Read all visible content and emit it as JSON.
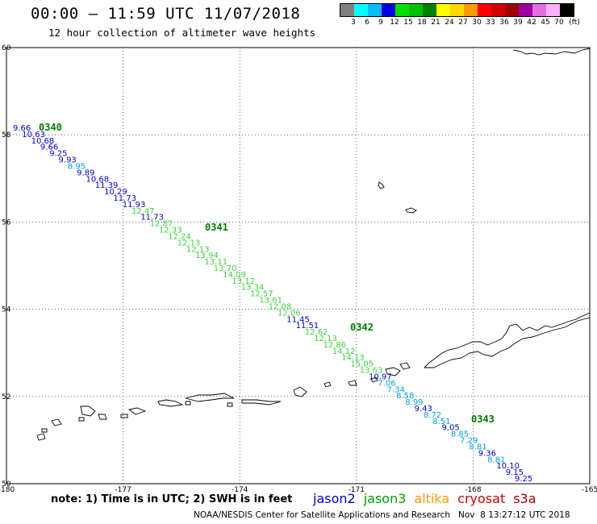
{
  "header": {
    "title": "00:00 – 11:59 UTC 11/07/2018",
    "subtitle": "12 hour collection of altimeter wave heights"
  },
  "color_scale": {
    "unit": "(ft)",
    "bins": [
      {
        "label": "3",
        "color": "#808080"
      },
      {
        "label": "6",
        "color": "#00ffff"
      },
      {
        "label": "9",
        "color": "#00bfff"
      },
      {
        "label": "12",
        "color": "#0000e0"
      },
      {
        "label": "15",
        "color": "#00e000"
      },
      {
        "label": "18",
        "color": "#00c000"
      },
      {
        "label": "21",
        "color": "#008000"
      },
      {
        "label": "24",
        "color": "#ffff00"
      },
      {
        "label": "27",
        "color": "#ffd700"
      },
      {
        "label": "30",
        "color": "#ff9900"
      },
      {
        "label": "33",
        "color": "#ff0000"
      },
      {
        "label": "36",
        "color": "#d00000"
      },
      {
        "label": "39",
        "color": "#a00000"
      },
      {
        "label": "42",
        "color": "#a000a0"
      },
      {
        "label": "45",
        "color": "#e070e0"
      },
      {
        "label": "70",
        "color": "#ffb0ff"
      },
      {
        "label": "",
        "color": "#000000"
      }
    ]
  },
  "axes": {
    "x_ticks": [
      "-180",
      "-177",
      "-174",
      "-171",
      "-168",
      "-165"
    ],
    "y_ticks": [
      "60",
      "58",
      "56",
      "54",
      "52",
      "50"
    ]
  },
  "track": {
    "time_labels": [
      "0340",
      "0341",
      "0342",
      "0343"
    ],
    "points": [
      {
        "v": "9.66",
        "c": "#0000c0"
      },
      {
        "v": "10.63",
        "c": "#0000c0"
      },
      {
        "v": "10.68",
        "c": "#0000c0"
      },
      {
        "v": "9.66",
        "c": "#0000c0"
      },
      {
        "v": "9.25",
        "c": "#0000c0"
      },
      {
        "v": "9.93",
        "c": "#0000c0"
      },
      {
        "v": "8.95",
        "c": "#00a0e0"
      },
      {
        "v": "9.89",
        "c": "#0000c0"
      },
      {
        "v": "10.68",
        "c": "#0000c0"
      },
      {
        "v": "11.39",
        "c": "#0000c0"
      },
      {
        "v": "10.29",
        "c": "#0000c0"
      },
      {
        "v": "11.73",
        "c": "#0000c0"
      },
      {
        "v": "11.93",
        "c": "#0000c0"
      },
      {
        "v": "12.47",
        "c": "#40d040"
      },
      {
        "v": "11.73",
        "c": "#0000c0"
      },
      {
        "v": "12.87",
        "c": "#40d040"
      },
      {
        "v": "12.33",
        "c": "#40d040"
      },
      {
        "v": "12.24",
        "c": "#40d040"
      },
      {
        "v": "12.13",
        "c": "#40d040"
      },
      {
        "v": "12.13",
        "c": "#40d040"
      },
      {
        "v": "13.94",
        "c": "#40d040"
      },
      {
        "v": "13.11",
        "c": "#40d040"
      },
      {
        "v": "13.70",
        "c": "#40d040"
      },
      {
        "v": "14.09",
        "c": "#40d040"
      },
      {
        "v": "13.12",
        "c": "#40d040"
      },
      {
        "v": "13.34",
        "c": "#40d040"
      },
      {
        "v": "12.57",
        "c": "#40d040"
      },
      {
        "v": "13.61",
        "c": "#40d040"
      },
      {
        "v": "12.08",
        "c": "#40d040"
      },
      {
        "v": "12.06",
        "c": "#40d040"
      },
      {
        "v": "11.45",
        "c": "#0000c0"
      },
      {
        "v": "11.51",
        "c": "#0000c0"
      },
      {
        "v": "12.62",
        "c": "#40d040"
      },
      {
        "v": "12.13",
        "c": "#40d040"
      },
      {
        "v": "12.86",
        "c": "#40d040"
      },
      {
        "v": "14.12",
        "c": "#40d040"
      },
      {
        "v": "14.13",
        "c": "#40d040"
      },
      {
        "v": "15.05",
        "c": "#40d040"
      },
      {
        "v": "13.63",
        "c": "#40d040"
      },
      {
        "v": "10.97",
        "c": "#0000c0"
      },
      {
        "v": "7.06",
        "c": "#00a0e0"
      },
      {
        "v": "7.34",
        "c": "#00a0e0"
      },
      {
        "v": "8.58",
        "c": "#00a0e0"
      },
      {
        "v": "8.99",
        "c": "#00a0e0"
      },
      {
        "v": "9.43",
        "c": "#0000c0"
      },
      {
        "v": "8.72",
        "c": "#00a0e0"
      },
      {
        "v": "8.51",
        "c": "#00a0e0"
      },
      {
        "v": "9.05",
        "c": "#0000c0"
      },
      {
        "v": "8.85",
        "c": "#00a0e0"
      },
      {
        "v": "7.29",
        "c": "#00a0e0"
      },
      {
        "v": "8.81",
        "c": "#00a0e0"
      },
      {
        "v": "9.36",
        "c": "#0000c0"
      },
      {
        "v": "8.81",
        "c": "#00a0e0"
      },
      {
        "v": "10.10",
        "c": "#0000c0"
      },
      {
        "v": "9.15",
        "c": "#0000c0"
      },
      {
        "v": "9.25",
        "c": "#0000c0"
      }
    ]
  },
  "footer": {
    "note": "note: 1) Time is in UTC; 2) SWH is in feet",
    "satellites": [
      {
        "name": "jason2",
        "color": "#0000d0"
      },
      {
        "name": "jason3",
        "color": "#00a000"
      },
      {
        "name": "altika",
        "color": "#ff9900"
      },
      {
        "name": "cryosat",
        "color": "#d00000"
      },
      {
        "name": "s3a",
        "color": "#a00000"
      }
    ],
    "credit": "NOAA/NESDIS Center for Satellite Applications and Research   Nov  8 13:27:12 UTC 2018"
  }
}
